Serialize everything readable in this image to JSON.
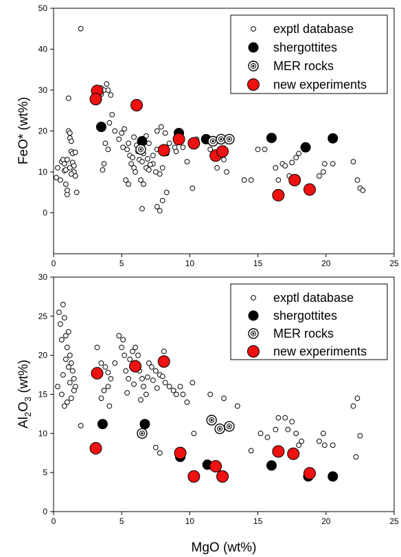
{
  "colors": {
    "new_experiments": "#ee1111",
    "shergottites": "#000000",
    "background": "#ffffff"
  },
  "chart_data": [
    {
      "type": "scatter",
      "xlabel": "",
      "ylabel": "FeO* (wt%)",
      "xlim": [
        0,
        25
      ],
      "ylim": [
        -10,
        50
      ],
      "xticks": [
        "0",
        "5",
        "10",
        "15",
        "20",
        "25"
      ],
      "yticks": [
        "0",
        "10",
        "20",
        "30",
        "40",
        "50"
      ],
      "legend_position": "top-right",
      "series": [
        {
          "name": "exptl database",
          "marker": "open-circle",
          "points": [
            [
              2.0,
              45
            ],
            [
              0.3,
              11
            ],
            [
              0.2,
              8.6
            ],
            [
              0.5,
              8
            ],
            [
              0.6,
              12.5
            ],
            [
              0.7,
              13
            ],
            [
              0.8,
              10.3
            ],
            [
              0.9,
              7
            ],
            [
              1.0,
              4.5
            ],
            [
              1.0,
              5.5
            ],
            [
              1.1,
              20
            ],
            [
              1.1,
              28
            ],
            [
              1.2,
              19.5
            ],
            [
              1.2,
              18.3
            ],
            [
              1.3,
              17.5
            ],
            [
              1.3,
              15
            ],
            [
              1.4,
              14.5
            ],
            [
              1.4,
              12.3
            ],
            [
              1.5,
              11.5
            ],
            [
              1.5,
              10
            ],
            [
              1.6,
              14.8
            ],
            [
              1.6,
              9
            ],
            [
              1.7,
              5
            ],
            [
              0.8,
              12
            ],
            [
              1.0,
              13
            ],
            [
              1.2,
              11
            ],
            [
              0.9,
              10.5
            ],
            [
              1.3,
              9.5
            ],
            [
              3.5,
              30.5
            ],
            [
              3.5,
              29
            ],
            [
              3.7,
              30
            ],
            [
              3.9,
              31.5
            ],
            [
              4.0,
              30
            ],
            [
              4.2,
              28.8
            ],
            [
              4.3,
              24
            ],
            [
              4.1,
              22
            ],
            [
              3.8,
              17
            ],
            [
              4.0,
              15.5
            ],
            [
              3.7,
              12
            ],
            [
              3.6,
              10.5
            ],
            [
              4.5,
              20
            ],
            [
              4.8,
              18
            ],
            [
              5.0,
              19.5
            ],
            [
              5.2,
              20.5
            ],
            [
              5.5,
              17
            ],
            [
              5.4,
              15.5
            ],
            [
              5.6,
              14
            ],
            [
              5.8,
              13.5
            ],
            [
              5.7,
              12
            ],
            [
              5.9,
              11
            ],
            [
              6.0,
              10
            ],
            [
              6.2,
              15
            ],
            [
              6.3,
              13
            ],
            [
              6.5,
              12.5
            ],
            [
              6.8,
              11
            ],
            [
              7.0,
              10.5
            ],
            [
              7.3,
              12
            ],
            [
              7.5,
              10
            ],
            [
              7.8,
              9.5
            ],
            [
              6.6,
              14.5
            ],
            [
              6.9,
              13.2
            ],
            [
              7.1,
              11.8
            ],
            [
              5.3,
              8
            ],
            [
              5.5,
              7
            ],
            [
              6.4,
              8
            ],
            [
              6.6,
              7
            ],
            [
              7.6,
              20
            ],
            [
              7.9,
              21
            ],
            [
              8.2,
              19.5
            ],
            [
              8.5,
              17
            ],
            [
              8.9,
              16
            ],
            [
              7.3,
              14
            ],
            [
              7.6,
              15.5
            ],
            [
              8.0,
              11
            ],
            [
              8.3,
              14.5
            ],
            [
              9.0,
              15
            ],
            [
              9.5,
              16
            ],
            [
              9.8,
              12.5
            ],
            [
              10.2,
              6
            ],
            [
              6.5,
              1
            ],
            [
              7.6,
              1.5
            ],
            [
              7.8,
              0.5
            ],
            [
              8.0,
              3
            ],
            [
              8.3,
              5
            ],
            [
              9.3,
              19.5
            ],
            [
              10.5,
              18
            ],
            [
              11.5,
              15.5
            ],
            [
              12.0,
              11
            ],
            [
              12.5,
              13
            ],
            [
              12.7,
              10
            ],
            [
              14.0,
              8
            ],
            [
              14.5,
              8
            ],
            [
              15.0,
              15.5
            ],
            [
              15.5,
              15.5
            ],
            [
              16.3,
              11
            ],
            [
              16.5,
              8
            ],
            [
              16.8,
              12
            ],
            [
              17.0,
              11.5
            ],
            [
              17.3,
              9
            ],
            [
              17.5,
              12.3
            ],
            [
              17.8,
              13.5
            ],
            [
              18.0,
              14.5
            ],
            [
              19.5,
              9
            ],
            [
              19.8,
              10
            ],
            [
              19.9,
              12
            ],
            [
              20.5,
              12
            ],
            [
              22.0,
              12.5
            ],
            [
              22.3,
              8
            ],
            [
              22.5,
              6
            ],
            [
              22.7,
              5.5
            ],
            [
              5.1,
              16
            ],
            [
              6.1,
              16.5
            ],
            [
              7.0,
              17
            ],
            [
              5.9,
              18.5
            ],
            [
              6.8,
              18.8
            ]
          ]
        },
        {
          "name": "shergottites",
          "marker": "filled-black",
          "points": [
            [
              3.5,
              21
            ],
            [
              6.5,
              17.5
            ],
            [
              9.2,
              19.5
            ],
            [
              11.2,
              18
            ],
            [
              16.0,
              18.3
            ],
            [
              18.5,
              16
            ],
            [
              20.5,
              18.2
            ]
          ]
        },
        {
          "name": "MER rocks",
          "marker": "dotted-circle",
          "points": [
            [
              6.4,
              15.5
            ],
            [
              11.7,
              17.5
            ],
            [
              12.3,
              18
            ],
            [
              12.9,
              18
            ]
          ]
        },
        {
          "name": "new experiments",
          "marker": "filled-red",
          "points": [
            [
              3.2,
              29.8
            ],
            [
              3.1,
              27.8
            ],
            [
              6.1,
              26.3
            ],
            [
              8.1,
              15.3
            ],
            [
              9.2,
              18
            ],
            [
              10.3,
              17
            ],
            [
              11.9,
              14
            ],
            [
              12.4,
              15
            ],
            [
              16.5,
              4.3
            ],
            [
              17.7,
              8
            ],
            [
              18.8,
              5.7
            ]
          ]
        }
      ]
    },
    {
      "type": "scatter",
      "xlabel": "MgO (wt%)",
      "ylabel": "Al2O3 (wt%)",
      "ylabel_main": "Al",
      "ylabel_sub": "2",
      "ylabel_main2": "O",
      "ylabel_sub2": "3",
      "ylabel_rest": " (wt%)",
      "xlim": [
        0,
        25
      ],
      "ylim": [
        0,
        30
      ],
      "xticks": [
        "0",
        "5",
        "10",
        "15",
        "20",
        "25"
      ],
      "yticks": [
        "0",
        "5",
        "10",
        "15",
        "20",
        "25",
        "30"
      ],
      "legend_position": "top-right",
      "series": [
        {
          "name": "exptl database",
          "marker": "open-circle",
          "points": [
            [
              0.3,
              16
            ],
            [
              0.4,
              25.5
            ],
            [
              0.5,
              24
            ],
            [
              0.6,
              22
            ],
            [
              0.7,
              26.5
            ],
            [
              0.8,
              24.8
            ],
            [
              0.9,
              22.5
            ],
            [
              1.0,
              21
            ],
            [
              1.1,
              23
            ],
            [
              1.2,
              20
            ],
            [
              1.3,
              19
            ],
            [
              1.4,
              18
            ],
            [
              1.5,
              17
            ],
            [
              1.6,
              16
            ],
            [
              1.5,
              15.5
            ],
            [
              1.3,
              14.5
            ],
            [
              1.0,
              14
            ],
            [
              0.8,
              13.5
            ],
            [
              0.6,
              15
            ],
            [
              0.7,
              17.5
            ],
            [
              1.1,
              18.5
            ],
            [
              1.2,
              16.5
            ],
            [
              0.9,
              19.5
            ],
            [
              2.0,
              11
            ],
            [
              3.2,
              21
            ],
            [
              3.5,
              19
            ],
            [
              3.8,
              18.5
            ],
            [
              4.0,
              17.8
            ],
            [
              4.2,
              17
            ],
            [
              4.0,
              16
            ],
            [
              3.7,
              15.5
            ],
            [
              4.1,
              13.5
            ],
            [
              3.5,
              14.5
            ],
            [
              4.5,
              19
            ],
            [
              4.8,
              22.5
            ],
            [
              5.0,
              21
            ],
            [
              5.2,
              20
            ],
            [
              5.3,
              18
            ],
            [
              5.5,
              17
            ],
            [
              5.6,
              19.5
            ],
            [
              5.8,
              20.5
            ],
            [
              6.0,
              21
            ],
            [
              6.2,
              20
            ],
            [
              6.3,
              18
            ],
            [
              6.5,
              17
            ],
            [
              6.6,
              16
            ],
            [
              6.8,
              15
            ],
            [
              7.0,
              19
            ],
            [
              7.2,
              18.5
            ],
            [
              7.5,
              18
            ],
            [
              7.8,
              17.5
            ],
            [
              8.0,
              17.3
            ],
            [
              8.2,
              16.5
            ],
            [
              8.5,
              16
            ],
            [
              8.8,
              15.5
            ],
            [
              9.0,
              15
            ],
            [
              9.3,
              16
            ],
            [
              9.5,
              15
            ],
            [
              9.8,
              14
            ],
            [
              10.2,
              16.5
            ],
            [
              5.1,
              22
            ],
            [
              5.4,
              15.2
            ],
            [
              5.9,
              16.3
            ],
            [
              6.4,
              14.3
            ],
            [
              6.9,
              17.2
            ],
            [
              7.3,
              16.8
            ],
            [
              7.6,
              15.8
            ],
            [
              8.1,
              20.5
            ],
            [
              10.3,
              10
            ],
            [
              7.8,
              7.5
            ],
            [
              7.5,
              8.2
            ],
            [
              11.5,
              15
            ],
            [
              12.5,
              14.5
            ],
            [
              13.5,
              13.5
            ],
            [
              14.5,
              7.8
            ],
            [
              15.2,
              10
            ],
            [
              15.7,
              9.5
            ],
            [
              16.3,
              10.5
            ],
            [
              16.5,
              12
            ],
            [
              17.0,
              12
            ],
            [
              17.2,
              10.5
            ],
            [
              17.5,
              11.5
            ],
            [
              17.8,
              10
            ],
            [
              18.2,
              9
            ],
            [
              18.0,
              8.5
            ],
            [
              19.5,
              9
            ],
            [
              19.8,
              10
            ],
            [
              19.9,
              8.5
            ],
            [
              20.5,
              8.5
            ],
            [
              22.0,
              13.5
            ],
            [
              22.3,
              14.5
            ],
            [
              22.5,
              9.7
            ],
            [
              22.2,
              7
            ]
          ]
        },
        {
          "name": "shergottites",
          "marker": "filled-black",
          "points": [
            [
              3.6,
              11.2
            ],
            [
              6.7,
              11.2
            ],
            [
              9.3,
              7
            ],
            [
              11.3,
              6
            ],
            [
              16.0,
              5.9
            ],
            [
              18.7,
              4.5
            ],
            [
              20.5,
              4.5
            ]
          ]
        },
        {
          "name": "MER rocks",
          "marker": "dotted-circle",
          "points": [
            [
              6.5,
              10
            ],
            [
              11.6,
              11.7
            ],
            [
              12.2,
              10.6
            ],
            [
              12.9,
              10.9
            ]
          ]
        },
        {
          "name": "new experiments",
          "marker": "filled-red",
          "points": [
            [
              3.1,
              8.1
            ],
            [
              3.2,
              17.7
            ],
            [
              6.0,
              18.6
            ],
            [
              8.1,
              19.2
            ],
            [
              9.3,
              7.5
            ],
            [
              10.3,
              4.5
            ],
            [
              11.9,
              5.8
            ],
            [
              12.4,
              4.5
            ],
            [
              16.5,
              7.7
            ],
            [
              17.6,
              7.4
            ],
            [
              18.8,
              4.9
            ]
          ]
        }
      ]
    }
  ]
}
